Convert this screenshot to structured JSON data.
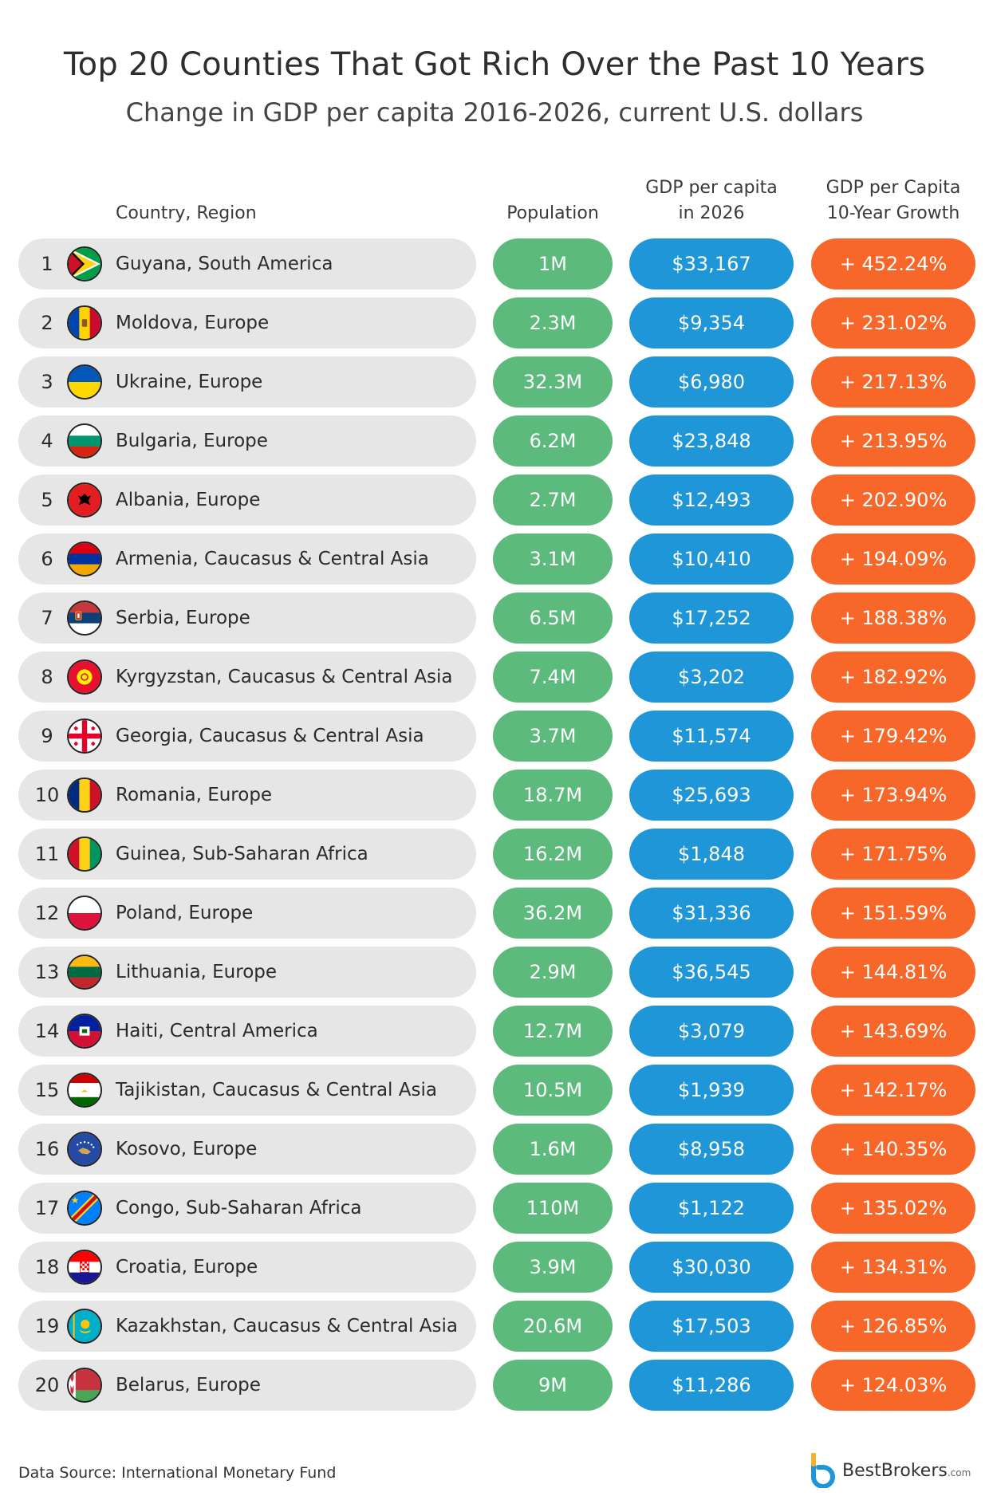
{
  "chart_data": {
    "type": "table",
    "title": "Top 20 Counties That Got Rich Over the Past 10 Years",
    "subtitle": "Change in GDP per capita 2016-2026, current U.S. dollars",
    "columns": {
      "country": "Country, Region",
      "population": "Population",
      "gdp_line1": "GDP per capita",
      "gdp_line2": "in 2026",
      "growth_line1": "GDP per Capita",
      "growth_line2": "10-Year Growth"
    },
    "rows": [
      {
        "rank": "1",
        "country": "Guyana, South America",
        "flag": "guyana-flag",
        "population": "1M",
        "gdp": "$33,167",
        "growth": "+ 452.24%"
      },
      {
        "rank": "2",
        "country": "Moldova, Europe",
        "flag": "moldova-flag",
        "population": "2.3M",
        "gdp": "$9,354",
        "growth": "+ 231.02%"
      },
      {
        "rank": "3",
        "country": "Ukraine, Europe",
        "flag": "ukraine-flag",
        "population": "32.3M",
        "gdp": "$6,980",
        "growth": "+ 217.13%"
      },
      {
        "rank": "4",
        "country": "Bulgaria, Europe",
        "flag": "bulgaria-flag",
        "population": "6.2M",
        "gdp": "$23,848",
        "growth": "+ 213.95%"
      },
      {
        "rank": "5",
        "country": "Albania, Europe",
        "flag": "albania-flag",
        "population": "2.7M",
        "gdp": "$12,493",
        "growth": "+ 202.90%"
      },
      {
        "rank": "6",
        "country": "Armenia, Caucasus & Central Asia",
        "flag": "armenia-flag",
        "population": "3.1M",
        "gdp": "$10,410",
        "growth": "+ 194.09%"
      },
      {
        "rank": "7",
        "country": "Serbia, Europe",
        "flag": "serbia-flag",
        "population": "6.5M",
        "gdp": "$17,252",
        "growth": "+ 188.38%"
      },
      {
        "rank": "8",
        "country": "Kyrgyzstan, Caucasus & Central Asia",
        "flag": "kyrgyzstan-flag",
        "population": "7.4M",
        "gdp": "$3,202",
        "growth": "+ 182.92%"
      },
      {
        "rank": "9",
        "country": "Georgia, Caucasus & Central Asia",
        "flag": "georgia-flag",
        "population": "3.7M",
        "gdp": "$11,574",
        "growth": "+ 179.42%"
      },
      {
        "rank": "10",
        "country": "Romania, Europe",
        "flag": "romania-flag",
        "population": "18.7M",
        "gdp": "$25,693",
        "growth": "+ 173.94%"
      },
      {
        "rank": "11",
        "country": "Guinea, Sub-Saharan Africa",
        "flag": "guinea-flag",
        "population": "16.2M",
        "gdp": "$1,848",
        "growth": "+ 171.75%"
      },
      {
        "rank": "12",
        "country": "Poland, Europe",
        "flag": "poland-flag",
        "population": "36.2M",
        "gdp": "$31,336",
        "growth": "+ 151.59%"
      },
      {
        "rank": "13",
        "country": "Lithuania, Europe",
        "flag": "lithuania-flag",
        "population": "2.9M",
        "gdp": "$36,545",
        "growth": "+ 144.81%"
      },
      {
        "rank": "14",
        "country": "Haiti, Central America",
        "flag": "haiti-flag",
        "population": "12.7M",
        "gdp": "$3,079",
        "growth": "+ 143.69%"
      },
      {
        "rank": "15",
        "country": "Tajikistan, Caucasus & Central Asia",
        "flag": "tajikistan-flag",
        "population": "10.5M",
        "gdp": "$1,939",
        "growth": "+ 142.17%"
      },
      {
        "rank": "16",
        "country": "Kosovo, Europe",
        "flag": "kosovo-flag",
        "population": "1.6M",
        "gdp": "$8,958",
        "growth": "+ 140.35%"
      },
      {
        "rank": "17",
        "country": "Congo, Sub-Saharan Africa",
        "flag": "congo-flag",
        "population": "110M",
        "gdp": "$1,122",
        "growth": "+ 135.02%"
      },
      {
        "rank": "18",
        "country": "Croatia, Europe",
        "flag": "croatia-flag",
        "population": "3.9M",
        "gdp": "$30,030",
        "growth": "+ 134.31%"
      },
      {
        "rank": "19",
        "country": "Kazakhstan, Caucasus & Central Asia",
        "flag": "kazakhstan-flag",
        "population": "20.6M",
        "gdp": "$17,503",
        "growth": "+ 126.85%"
      },
      {
        "rank": "20",
        "country": "Belarus, Europe",
        "flag": "belarus-flag",
        "population": "9M",
        "gdp": "$11,286",
        "growth": "+ 124.03%"
      }
    ],
    "colors": {
      "population": "#5dba7d",
      "gdp": "#1f96d8",
      "growth": "#f7672a",
      "row": "#e6e6e6"
    }
  },
  "footer": {
    "source": "Data Source: International Monetary Fund",
    "brand": "BestBrokers",
    "brand_suffix": ".com",
    "brand_icon": "bestbrokers-logo-icon"
  }
}
